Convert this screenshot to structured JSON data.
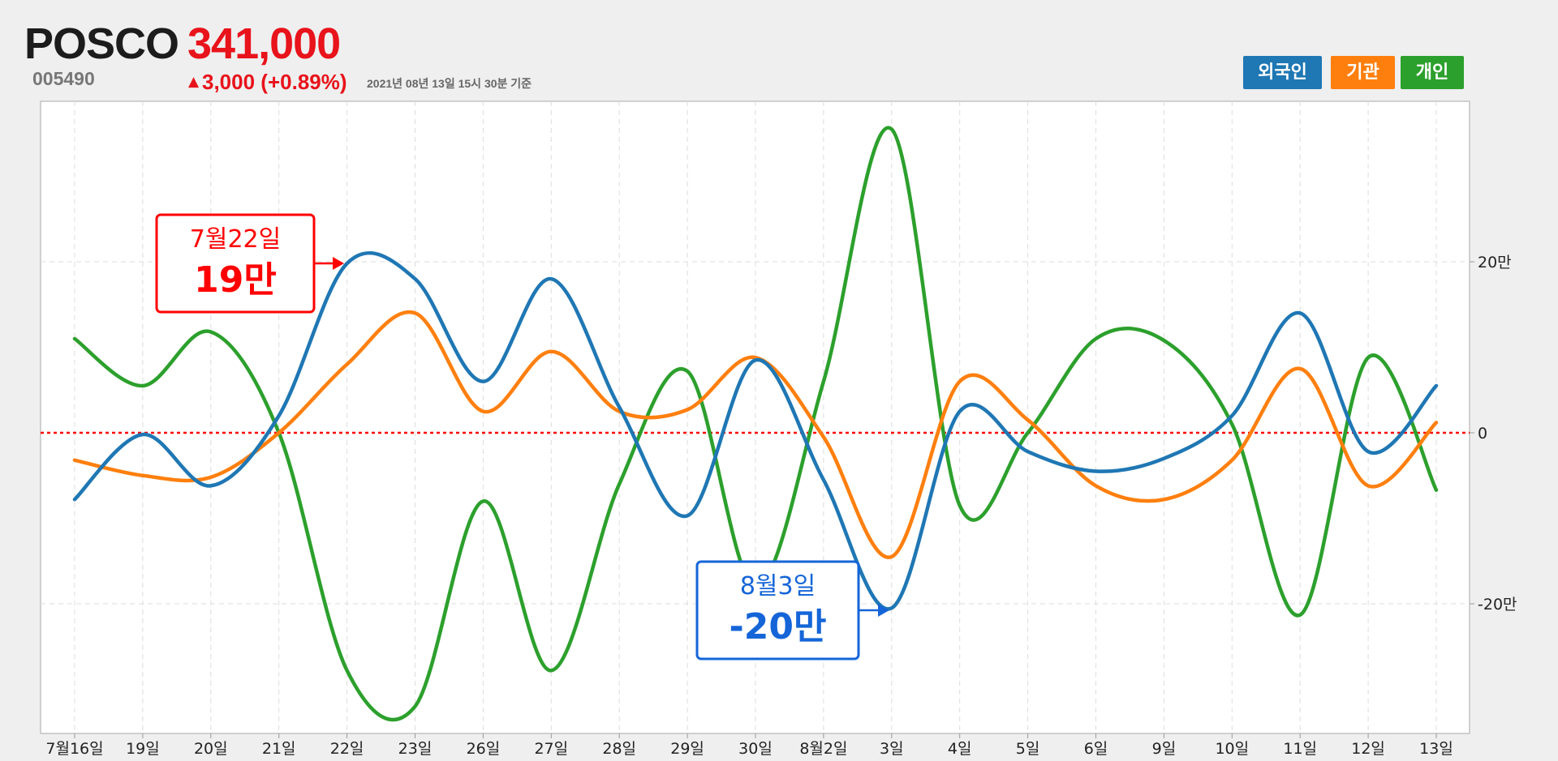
{
  "header": {
    "company_name": "POSCO",
    "stock_code": "005490",
    "price": "341,000",
    "change_arrow": "▲",
    "change": "3,000 (+0.89%)",
    "timestamp": "2021년 08년 13일 15시 30분 기준"
  },
  "colors": {
    "foreign": "#1f77b4",
    "institution": "#ff7f0e",
    "individual": "#2ca02c",
    "up": "#e8131b",
    "zero_line": "#ff0000",
    "max_callout": "#ff0000",
    "min_callout": "#1565d8"
  },
  "legend": {
    "foreign": "외국인",
    "institution": "기관",
    "individual": "개인"
  },
  "callouts": {
    "max": {
      "date": "7월22일",
      "value": "19만"
    },
    "min": {
      "date": "8월3일",
      "value": "-20만"
    }
  },
  "chart_data": {
    "type": "line",
    "categories": [
      "7월16일",
      "19일",
      "20일",
      "21일",
      "22일",
      "23일",
      "26일",
      "27일",
      "28일",
      "29일",
      "30일",
      "8월2일",
      "3일",
      "4일",
      "5일",
      "6일",
      "9일",
      "10일",
      "11일",
      "12일",
      "13일"
    ],
    "y_tick_labels": [
      "20만",
      "0",
      "-20만"
    ],
    "y_ticks": [
      200000,
      0,
      -200000
    ],
    "ylim": [
      -350000,
      380000
    ],
    "grid": true,
    "zero_line": "red dotted",
    "legend_position": "top-right",
    "series": [
      {
        "name": "외국인",
        "color": "#1f77b4",
        "values": [
          -78000,
          -2000,
          -62000,
          20000,
          198000,
          180000,
          60000,
          180000,
          30000,
          -97000,
          85000,
          -55000,
          -205000,
          25000,
          -22000,
          -45000,
          -30000,
          20000,
          140000,
          -22000,
          55000
        ]
      },
      {
        "name": "기관",
        "color": "#ff7f0e",
        "values": [
          -32000,
          -50000,
          -52000,
          0,
          80000,
          140000,
          25000,
          95000,
          25000,
          27000,
          88000,
          -5000,
          -145000,
          60000,
          15000,
          -62000,
          -78000,
          -32000,
          75000,
          -62000,
          12000
        ]
      },
      {
        "name": "개인",
        "color": "#2ca02c",
        "values": [
          110000,
          55000,
          118000,
          0,
          -278000,
          -320000,
          -80000,
          -278000,
          -60000,
          72000,
          -180000,
          60000,
          355000,
          -85000,
          0,
          110000,
          108000,
          10000,
          -213000,
          88000,
          -67000
        ]
      }
    ]
  }
}
